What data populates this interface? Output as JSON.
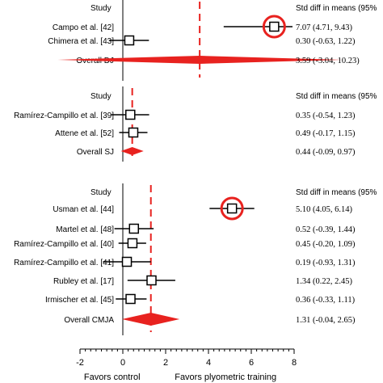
{
  "chart_data": {
    "type": "forest",
    "xlim": [
      -2,
      8
    ],
    "ticks": [
      -2,
      0,
      2,
      4,
      6,
      8
    ],
    "xlabel_left": "Favors control",
    "xlabel_right": "Favors plyometric training",
    "colors": {
      "pooled": "#e8221f",
      "highlight": "#e8221f",
      "line": "#000000"
    },
    "panels": [
      {
        "study_header": "Study",
        "stat_header": "Std diff in means (95%",
        "studies": [
          {
            "label": "Campo et al. [42]",
            "est": 7.07,
            "lo": 4.71,
            "hi": 9.43,
            "ci_text": "7.07 (4.71, 9.43)",
            "highlight": true
          },
          {
            "label": "Chimera et al. [43]",
            "est": 0.3,
            "lo": -0.63,
            "hi": 1.22,
            "ci_text": "0.30 (-0.63, 1.22)",
            "highlight": false
          }
        ],
        "overall": {
          "label": "Overall DJ",
          "est": 3.59,
          "lo": -3.04,
          "hi": 10.23,
          "ci_text": "3.59 (-3.04, 10.23)"
        }
      },
      {
        "study_header": "Study",
        "stat_header": "Std diff in means (95%",
        "studies": [
          {
            "label": "Ramírez-Campillo et al. [39]",
            "est": 0.35,
            "lo": -0.54,
            "hi": 1.23,
            "ci_text": "0.35 (-0.54, 1.23)",
            "highlight": false
          },
          {
            "label": "Attene et al. [52]",
            "est": 0.49,
            "lo": -0.17,
            "hi": 1.15,
            "ci_text": "0.49 (-0.17, 1.15)",
            "highlight": false
          }
        ],
        "overall": {
          "label": "Overall SJ",
          "est": 0.44,
          "lo": -0.09,
          "hi": 0.97,
          "ci_text": "0.44 (-0.09, 0.97)"
        }
      },
      {
        "study_header": "Study",
        "stat_header": "Std diff in means (95%",
        "studies": [
          {
            "label": "Usman et al. [44]",
            "est": 5.1,
            "lo": 4.05,
            "hi": 6.14,
            "ci_text": "5.10 (4.05, 6.14)",
            "highlight": true
          },
          {
            "label": "Martel et al. [48]",
            "est": 0.52,
            "lo": -0.39,
            "hi": 1.44,
            "ci_text": "0.52 (-0.39, 1.44)",
            "highlight": false
          },
          {
            "label": "Ramírez-Campillo et al. [40]",
            "est": 0.45,
            "lo": -0.2,
            "hi": 1.09,
            "ci_text": "0.45 (-0.20, 1.09)",
            "highlight": false
          },
          {
            "label": "Ramírez-Campillo et al. [41]",
            "est": 0.19,
            "lo": -0.93,
            "hi": 1.31,
            "ci_text": "0.19 (-0.93, 1.31)",
            "highlight": false
          },
          {
            "label": "Rubley et al. [17]",
            "est": 1.34,
            "lo": 0.22,
            "hi": 2.45,
            "ci_text": "1.34 (0.22, 2.45)",
            "highlight": false
          },
          {
            "label": "Irmischer et al. [45]",
            "est": 0.36,
            "lo": -0.33,
            "hi": 1.11,
            "ci_text": "0.36 (-0.33, 1.11)",
            "highlight": false
          }
        ],
        "overall": {
          "label": "Overall CMJA",
          "est": 1.31,
          "lo": -0.04,
          "hi": 2.65,
          "ci_text": "1.31 (-0.04, 2.65)"
        }
      }
    ]
  }
}
